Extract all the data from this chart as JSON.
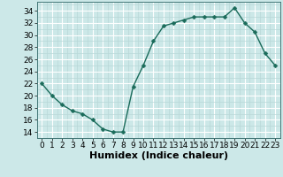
{
  "x": [
    0,
    1,
    2,
    3,
    4,
    5,
    6,
    7,
    8,
    9,
    10,
    11,
    12,
    13,
    14,
    15,
    16,
    17,
    18,
    19,
    20,
    21,
    22,
    23
  ],
  "y": [
    22,
    20,
    18.5,
    17.5,
    17,
    16,
    14.5,
    14,
    14,
    21.5,
    25,
    29,
    31.5,
    32,
    32.5,
    33,
    33,
    33,
    33,
    34.5,
    32,
    30.5,
    27,
    25
  ],
  "line_color": "#1a6b5a",
  "marker_color": "#1a6b5a",
  "bg_color": "#cce8e8",
  "grid_major_color": "#ffffff",
  "grid_minor_color": "#b8d8d8",
  "xlabel": "Humidex (Indice chaleur)",
  "xlim": [
    -0.5,
    23.5
  ],
  "ylim": [
    13.0,
    35.5
  ],
  "yticks": [
    14,
    16,
    18,
    20,
    22,
    24,
    26,
    28,
    30,
    32,
    34
  ],
  "xticks": [
    0,
    1,
    2,
    3,
    4,
    5,
    6,
    7,
    8,
    9,
    10,
    11,
    12,
    13,
    14,
    15,
    16,
    17,
    18,
    19,
    20,
    21,
    22,
    23
  ],
  "tick_fontsize": 6.5,
  "xlabel_fontsize": 8,
  "marker_size": 2.5,
  "line_width": 1.0
}
